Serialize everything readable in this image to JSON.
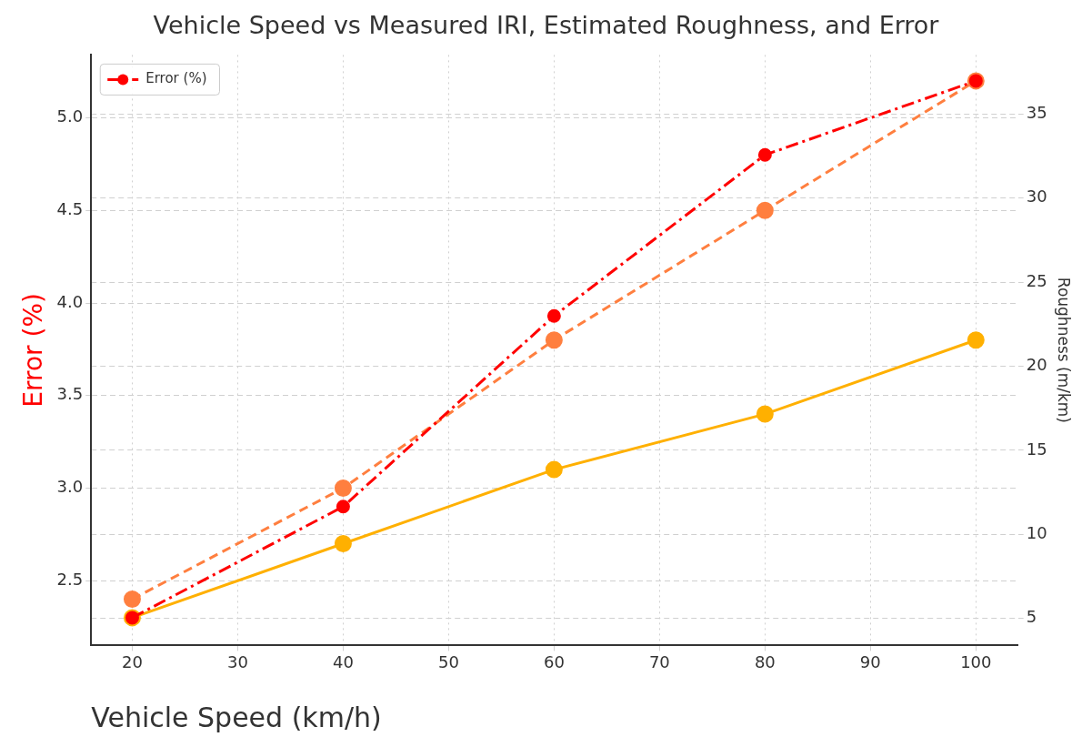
{
  "chart_data": {
    "type": "line",
    "title": "Vehicle Speed vs Measured IRI, Estimated Roughness, and Error",
    "xlabel": "Vehicle Speed (km/h)",
    "ylabel": "Error (%)",
    "y2label": "Roughness (m/km)",
    "x": [
      20,
      40,
      60,
      80,
      100
    ],
    "series": [
      {
        "name": "Error (%)",
        "color": "#ff0000",
        "values": [
          2.3,
          2.9,
          3.93,
          4.8,
          5.2
        ],
        "line_style": "dashed"
      },
      {
        "color": "#ff7f3f",
        "values": [
          2.4,
          3.0,
          3.8,
          4.5,
          5.2
        ],
        "line_style": "dashed"
      },
      {
        "color": "#ffb000",
        "values": [
          2.3,
          2.7,
          3.1,
          3.4,
          3.8
        ],
        "line_style": "solid"
      }
    ],
    "xlim": [
      16.1,
      104
    ],
    "xticks": [
      20,
      30,
      40,
      50,
      60,
      70,
      80,
      90,
      100
    ],
    "ylim": [
      2.15,
      5.34
    ],
    "yticks": [
      2.5,
      {
        "value": 3,
        "label": "3.0"
      },
      3.5,
      {
        "value": 4,
        "label": "4.0"
      },
      4.5,
      {
        "value": 5,
        "label": "5.0"
      }
    ],
    "y2lim": [
      3.4,
      38.5
    ],
    "y2ticks": [
      5,
      10,
      15,
      20,
      25,
      30,
      35
    ],
    "grid": true,
    "legend": "top left",
    "marker": "circle"
  }
}
